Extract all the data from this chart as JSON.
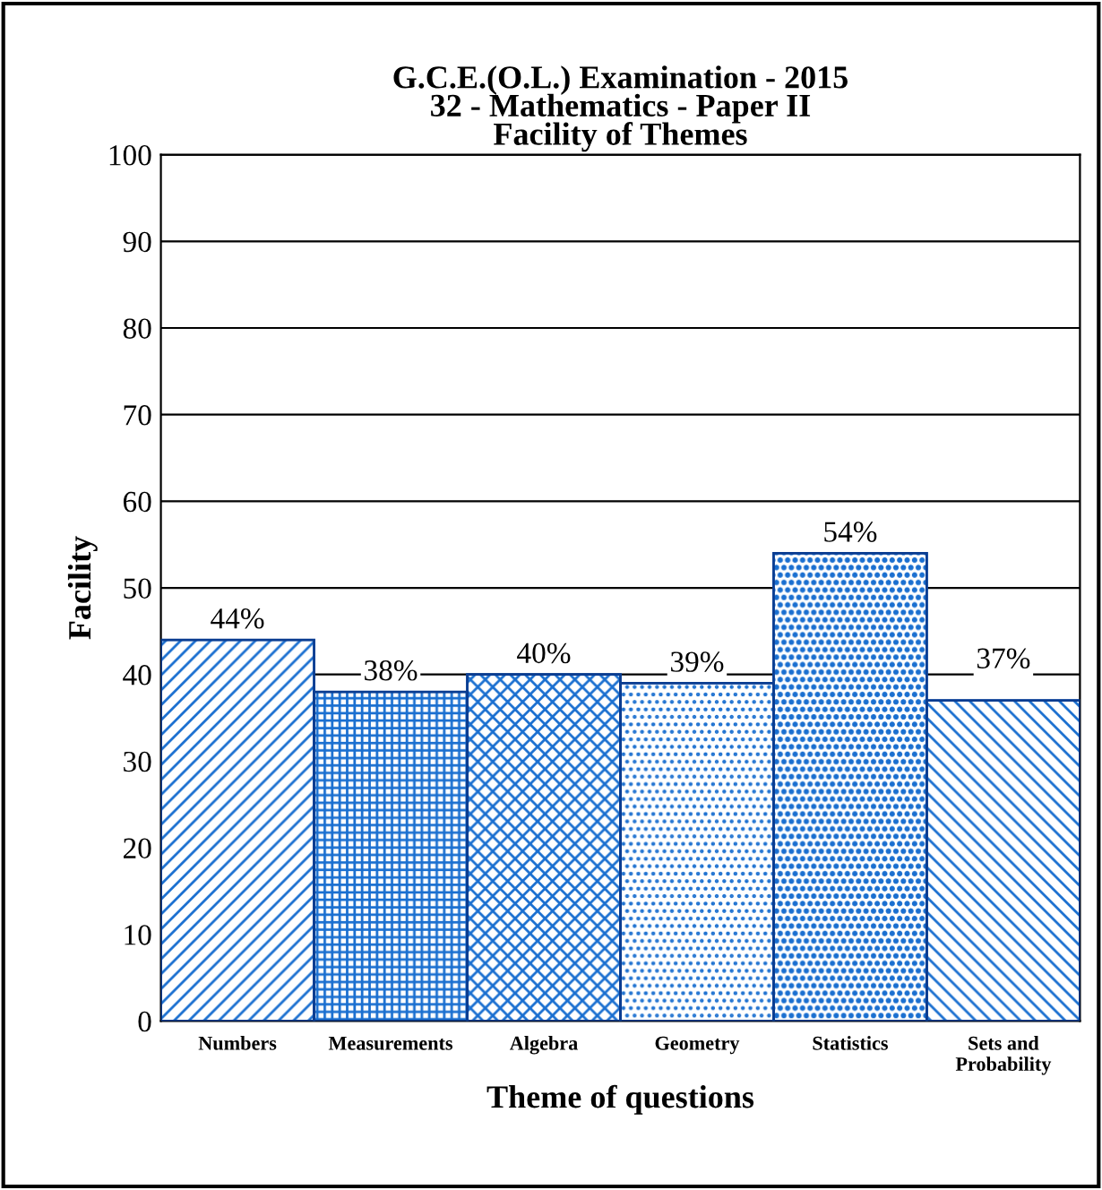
{
  "chart_data": {
    "type": "bar",
    "title": "G.C.E.(O.L.) Examination - 2015\n32 - Mathematics - Paper II\nFacility of Themes",
    "xlabel": "Theme of questions",
    "ylabel": "Facility",
    "categories": [
      "Numbers",
      "Measurements",
      "Algebra",
      "Geometry",
      "Statistics",
      "Sets and\nProbability"
    ],
    "values": [
      44,
      38,
      40,
      39,
      54,
      37
    ],
    "value_labels": [
      "44%",
      "38%",
      "40%",
      "39%",
      "54%",
      null
    ],
    "annotations": [
      {
        "text": "37%",
        "x": "Sets and\nProbability",
        "y": 37
      }
    ],
    "color": "#1a6fd0",
    "ylim": [
      0,
      100
    ],
    "yticks": [
      0,
      10,
      20,
      30,
      40,
      50,
      60,
      70,
      80,
      90,
      100
    ],
    "grid": "y"
  }
}
